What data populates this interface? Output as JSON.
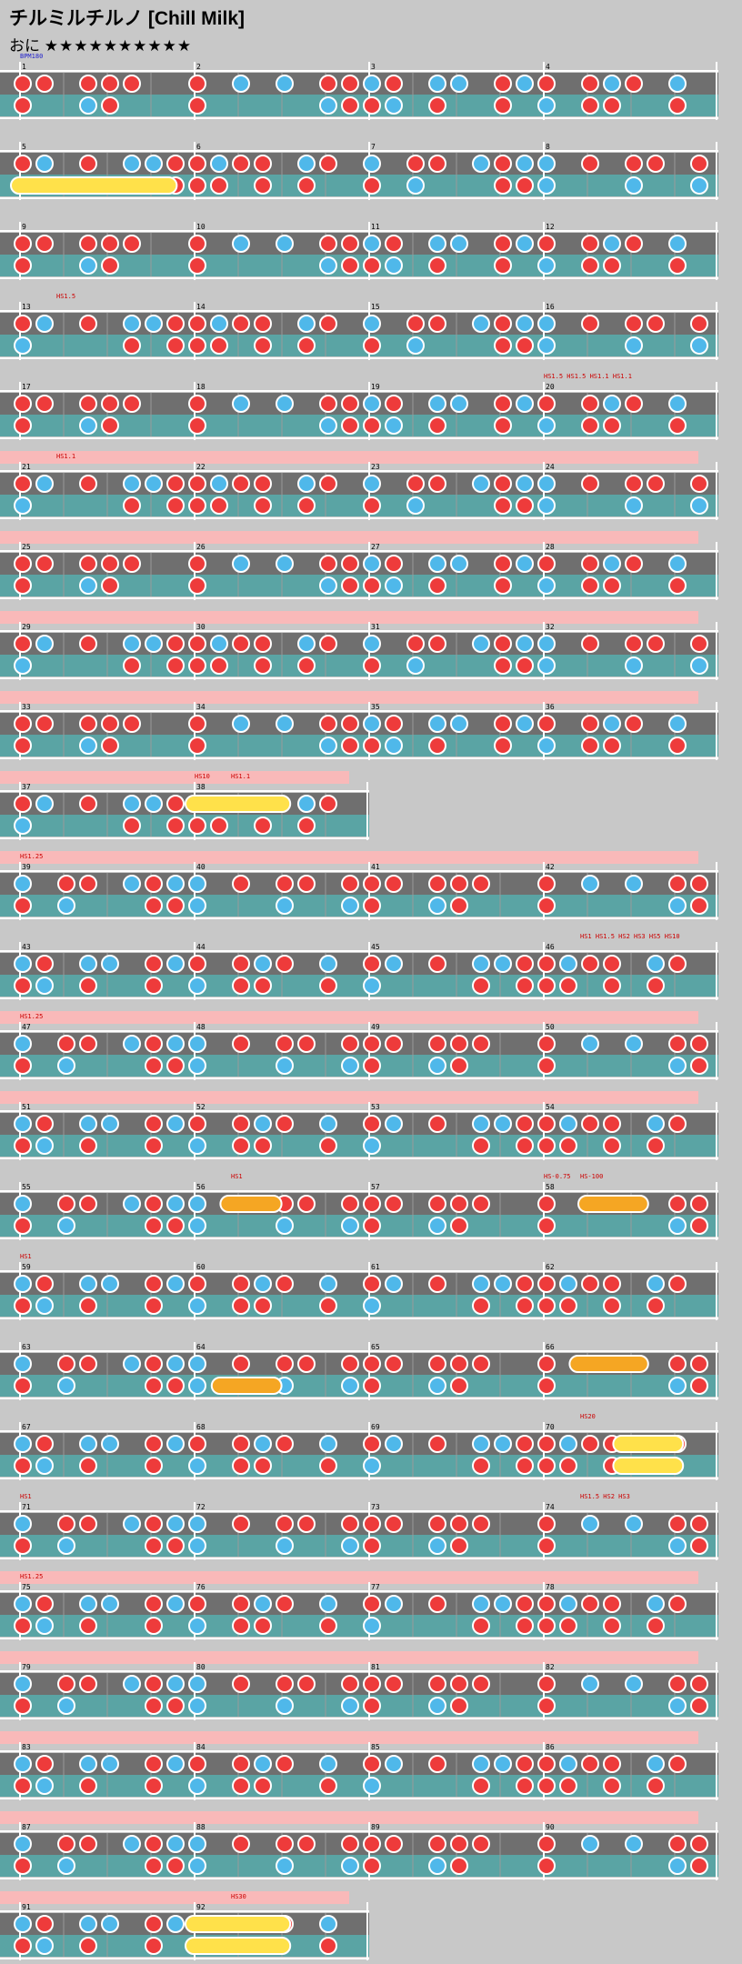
{
  "song": {
    "title": "チルミルチルノ [Chill Milk]",
    "difficulty_label": "おに",
    "stars": "★★★★★★★★★★"
  },
  "events": [
    {
      "measure": 1,
      "text": "BPM180",
      "color": "#2222cc"
    },
    {
      "measure": 13,
      "text": "HS1.5",
      "color": "#cc0000"
    },
    {
      "measure": 20,
      "text": "HS1.5 HS1.5 HS1.1 HS1.1",
      "color": "#cc0000"
    },
    {
      "measure": 21,
      "text": "HS1.1",
      "color": "#cc0000"
    },
    {
      "measure": 38,
      "text": "HS10",
      "color": "#cc0000"
    },
    {
      "measure": 38,
      "text": "HS1.1",
      "color": "#cc0000"
    },
    {
      "measure": 39,
      "text": "HS1.25",
      "color": "#cc0000"
    },
    {
      "measure": 46,
      "text": "HS1 HS1.5 HS2 HS3 HS5 HS10",
      "color": "#cc0000"
    },
    {
      "measure": 47,
      "text": "HS1.25",
      "color": "#cc0000"
    },
    {
      "measure": 56,
      "text": "HS1",
      "color": "#cc0000"
    },
    {
      "measure": 58,
      "text": "HS-0.75",
      "color": "#cc0000"
    },
    {
      "measure": 58,
      "text": "HS-100",
      "color": "#cc0000"
    },
    {
      "measure": 59,
      "text": "HS1",
      "color": "#cc0000"
    },
    {
      "measure": 70,
      "text": "HS20",
      "color": "#cc0000"
    },
    {
      "measure": 71,
      "text": "HS1",
      "color": "#cc0000"
    },
    {
      "measure": 74,
      "text": "HS1.5 HS2 HS3",
      "color": "#cc0000"
    },
    {
      "measure": 75,
      "text": "HS1.25",
      "color": "#cc0000"
    },
    {
      "measure": 92,
      "text": "HS30",
      "color": "#cc0000"
    }
  ],
  "colors": {
    "don": "#ee3b3b",
    "ka": "#4fb8ea",
    "roll": "#ffe14a",
    "balloon": "#f5a623",
    "lane_dark": "#6f6f6f",
    "lane_teal": "#5aa4a4",
    "gogo": "#f9b9b9",
    "background": "#c8c8c8"
  }
}
